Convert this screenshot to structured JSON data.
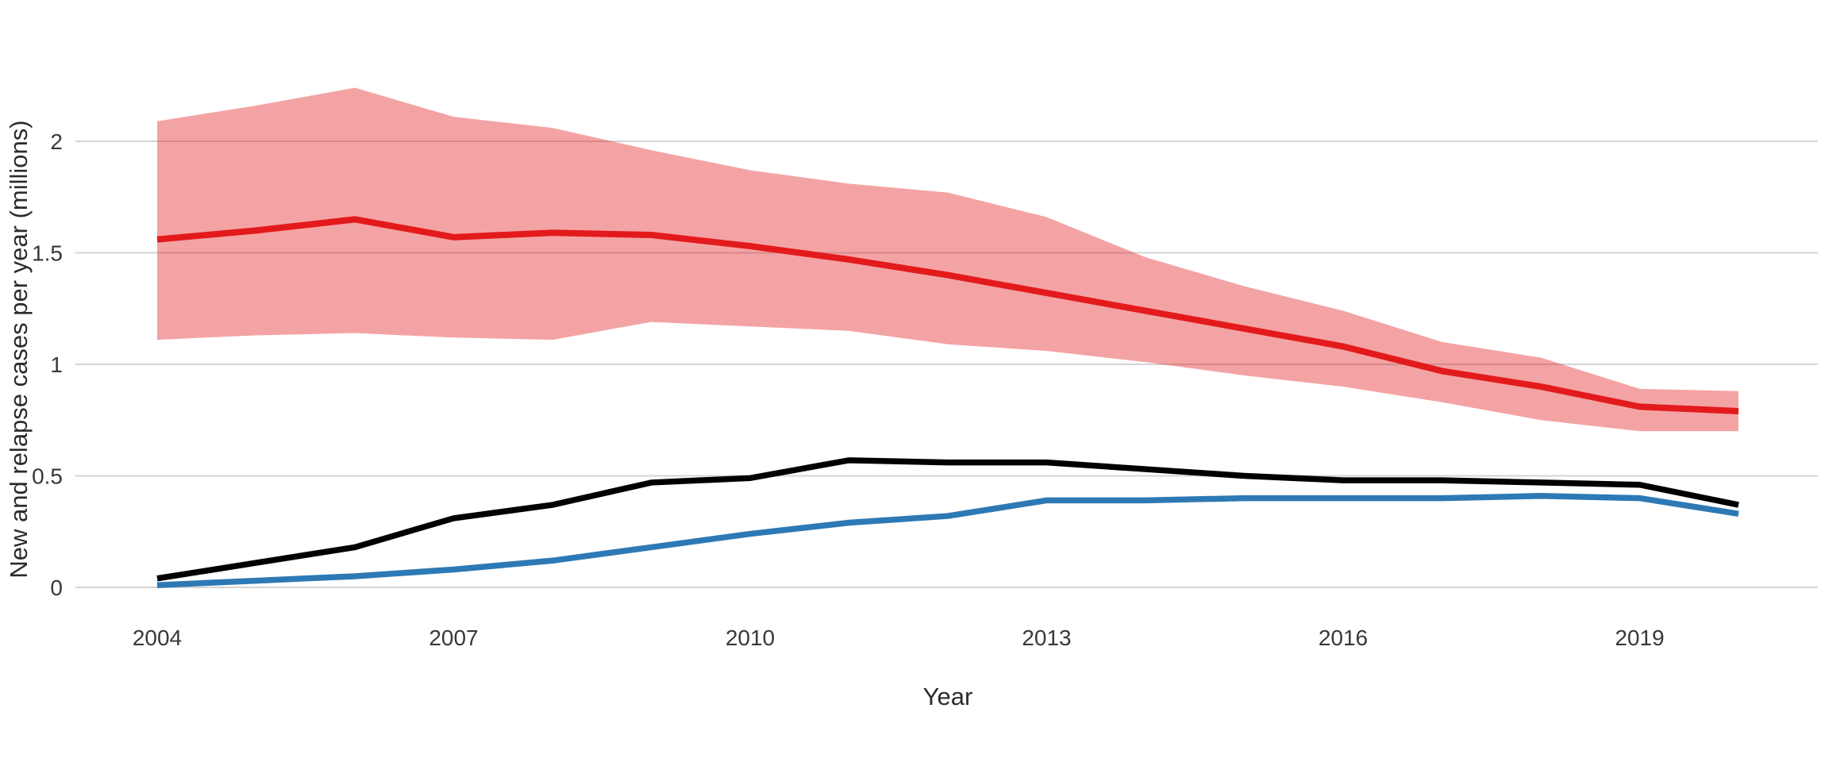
{
  "chart_data": {
    "type": "line",
    "title": "",
    "xlabel": "Year",
    "ylabel": "New and relapse cases per year (millions)",
    "legend": "none",
    "grid": "horizontal-major-only",
    "background": "#ffffff",
    "gridline_color": "#d4d4d4",
    "xlim": [
      2004,
      2020
    ],
    "ylim": [
      0,
      2.25
    ],
    "x": [
      2004,
      2005,
      2006,
      2007,
      2008,
      2009,
      2010,
      2011,
      2012,
      2013,
      2014,
      2015,
      2016,
      2017,
      2018,
      2019,
      2020
    ],
    "xticks": [
      2004,
      2007,
      2010,
      2013,
      2016,
      2019
    ],
    "xtick_labels": [
      "2004",
      "2007",
      "2010",
      "2013",
      "2016",
      "2019"
    ],
    "yticks": [
      0,
      0.5,
      1,
      1.5,
      2
    ],
    "ytick_labels": [
      "0",
      "0.5",
      "1",
      "1.5",
      "2"
    ],
    "series": [
      {
        "name": "red-line-with-uncertainty-band",
        "color": "#e31a1c",
        "band_fill": "rgba(227,26,28,0.40)",
        "line_width": 8,
        "values": [
          1.56,
          1.6,
          1.65,
          1.57,
          1.59,
          1.58,
          1.53,
          1.47,
          1.4,
          1.32,
          1.24,
          1.16,
          1.08,
          0.97,
          0.9,
          0.81,
          0.79
        ],
        "band_upper": [
          2.09,
          2.16,
          2.24,
          2.11,
          2.06,
          1.96,
          1.87,
          1.81,
          1.77,
          1.66,
          1.48,
          1.35,
          1.24,
          1.1,
          1.03,
          0.89,
          0.88
        ],
        "band_lower": [
          1.11,
          1.13,
          1.14,
          1.12,
          1.11,
          1.19,
          1.17,
          1.15,
          1.09,
          1.06,
          1.01,
          0.95,
          0.9,
          0.83,
          0.75,
          0.7,
          0.7
        ]
      },
      {
        "name": "black-line",
        "color": "#000000",
        "line_width": 7.5,
        "values": [
          0.04,
          0.11,
          0.18,
          0.31,
          0.37,
          0.47,
          0.49,
          0.57,
          0.56,
          0.56,
          0.53,
          0.5,
          0.48,
          0.48,
          0.47,
          0.46,
          0.37
        ]
      },
      {
        "name": "blue-line",
        "color": "#2d79b5",
        "line_width": 7.5,
        "values": [
          0.01,
          0.03,
          0.05,
          0.08,
          0.12,
          0.18,
          0.24,
          0.29,
          0.32,
          0.39,
          0.39,
          0.4,
          0.4,
          0.4,
          0.41,
          0.4,
          0.33
        ]
      }
    ]
  }
}
